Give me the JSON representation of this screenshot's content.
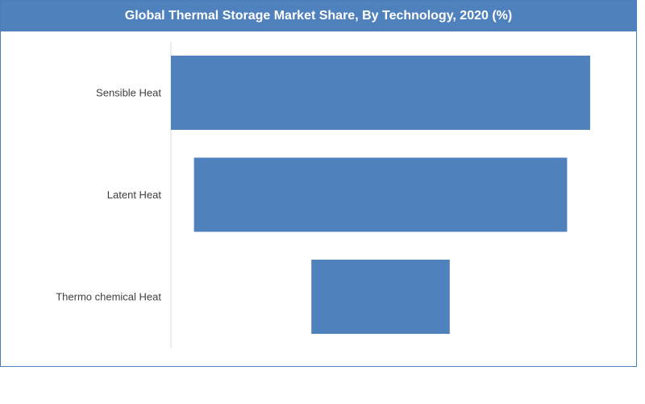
{
  "chart_data": {
    "type": "bar",
    "orientation": "horizontal",
    "layout": "funnel",
    "title": "Global Thermal Storage Market Share, By Technology, 2020 (%)",
    "categories": [
      "Sensible Heat",
      "Latent Heat",
      "Thermo chemical Heat"
    ],
    "values": [
      100,
      89,
      33
    ],
    "xlabel": "",
    "ylabel": "",
    "xlim": [
      0,
      100
    ],
    "grid": false,
    "legend": "none",
    "colors": {
      "bar": "#4f81bd",
      "title_bg": "#4f81bd",
      "title_text": "#ffffff",
      "frame": "#4a7ebb",
      "axis": "#d9d9d9",
      "label": "#404040"
    }
  }
}
